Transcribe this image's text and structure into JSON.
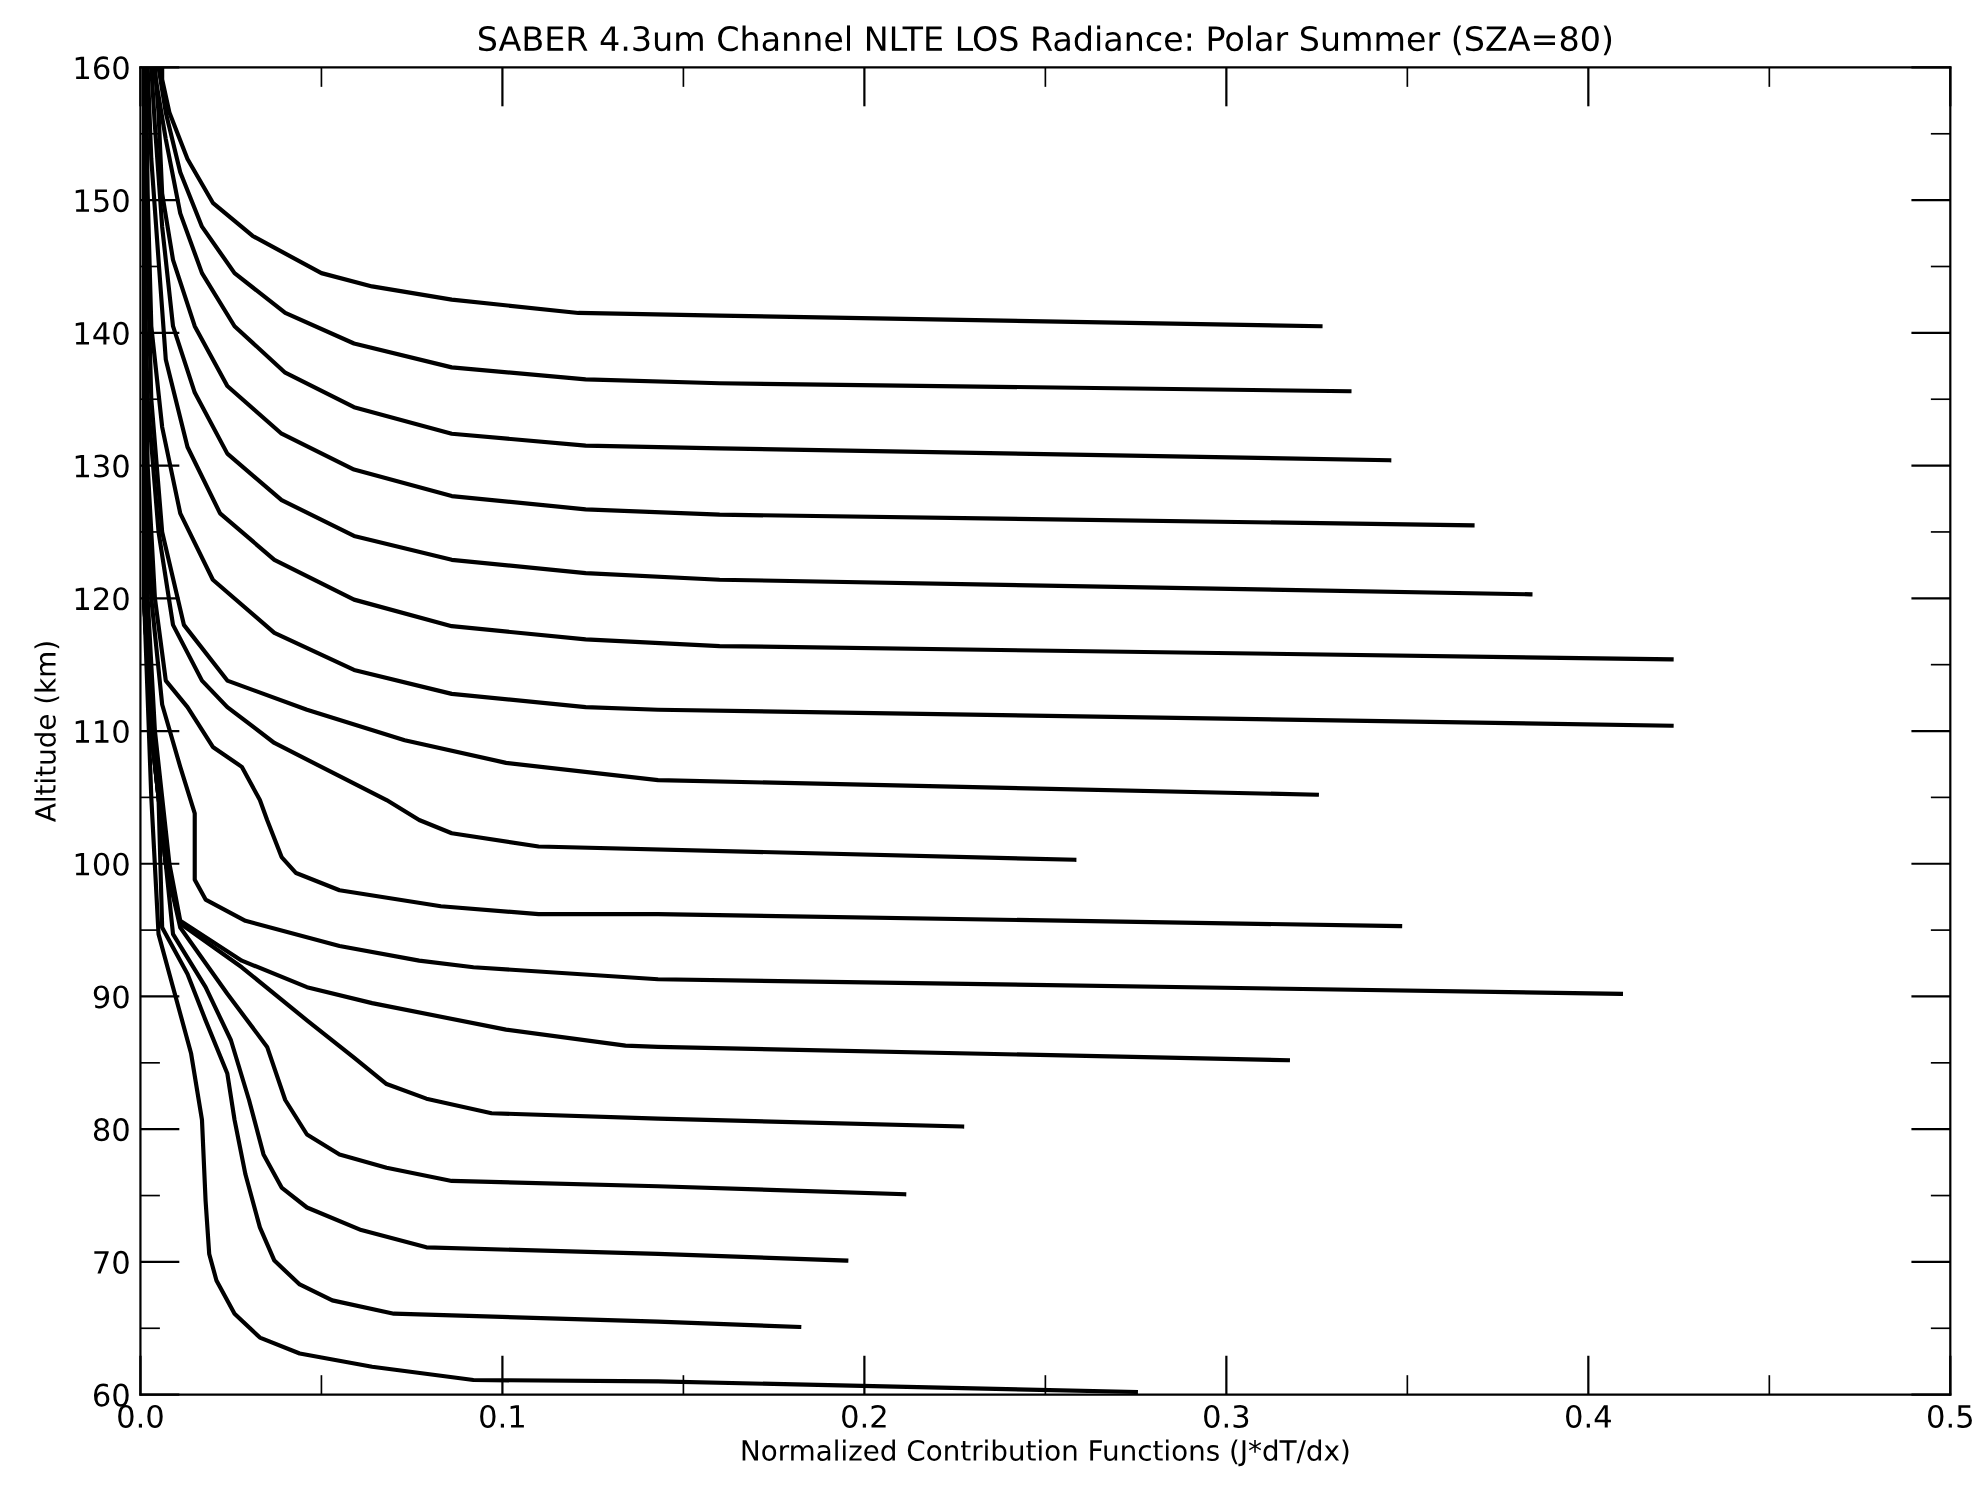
{
  "chart_data": {
    "type": "line",
    "title": "SABER 4.3um Channel NLTE LOS Radiance: Polar Summer (SZA=80)",
    "xlabel": "Normalized Contribution Functions (J*dT/dx)",
    "ylabel": "Altitude (km)",
    "xlim": [
      0,
      0.5
    ],
    "ylim": [
      60,
      160
    ],
    "xticks": [
      {
        "value": 0,
        "label": "0.0"
      },
      {
        "value": 0.1,
        "label": "0.1"
      },
      {
        "value": 0.2,
        "label": "0.2"
      },
      {
        "value": 0.3,
        "label": "0.3"
      },
      {
        "value": 0.4,
        "label": "0.4"
      },
      {
        "value": 0.5,
        "label": "0.5"
      }
    ],
    "yticks": [
      60,
      70,
      80,
      90,
      100,
      110,
      120,
      130,
      140,
      150,
      160
    ],
    "grid": false,
    "legend": false,
    "marker": "none",
    "line_style": "solid",
    "series": [
      {
        "color": "#000000",
        "x": [
          0.275,
          0.143,
          0.092,
          0.064,
          0.044,
          0.033,
          0.026,
          0.021,
          0.019,
          0.018,
          0.017,
          0.014,
          0.009,
          0.005,
          0.003,
          0.001,
          0.001,
          0.001
        ],
        "values": [
          60.2,
          61.0,
          61.1,
          62.1,
          63.1,
          64.3,
          66.1,
          68.6,
          70.6,
          74.6,
          80.7,
          85.7,
          90.7,
          94.7,
          105,
          120,
          140,
          160
        ]
      },
      {
        "color": "#000000",
        "x": [
          0.182,
          0.143,
          0.07,
          0.053,
          0.044,
          0.037,
          0.033,
          0.029,
          0.026,
          0.024,
          0.018,
          0.013,
          0.006,
          0.005,
          0.003,
          0.001,
          0.001,
          0.001
        ],
        "values": [
          65.1,
          65.5,
          66.1,
          67.1,
          68.3,
          70.1,
          72.6,
          76.6,
          80.7,
          84.2,
          88.2,
          91.7,
          95.2,
          105,
          110,
          120,
          140,
          160
        ]
      },
      {
        "color": "#000000",
        "x": [
          0.195,
          0.143,
          0.079,
          0.061,
          0.046,
          0.039,
          0.034,
          0.03,
          0.025,
          0.018,
          0.009,
          0.007,
          0.005,
          0.003,
          0.001,
          0.001,
          0.001
        ],
        "values": [
          70.1,
          70.6,
          71.1,
          72.4,
          74.1,
          75.6,
          78.1,
          82.2,
          86.7,
          90.7,
          94.7,
          100,
          105,
          110,
          120,
          140,
          160
        ]
      },
      {
        "color": "#000000",
        "x": [
          0.211,
          0.143,
          0.086,
          0.068,
          0.055,
          0.046,
          0.04,
          0.035,
          0.024,
          0.011,
          0.007,
          0.005,
          0.003,
          0.001,
          0.001,
          0.001
        ],
        "values": [
          75.1,
          75.7,
          76.1,
          77.1,
          78.1,
          79.6,
          82.2,
          86.2,
          90.2,
          95.2,
          100,
          105,
          110,
          120,
          140,
          160
        ]
      },
      {
        "color": "#000000",
        "x": [
          0.227,
          0.143,
          0.097,
          0.079,
          0.068,
          0.059,
          0.046,
          0.028,
          0.011,
          0.007,
          0.005,
          0.003,
          0.001,
          0.001,
          0.001
        ],
        "values": [
          80.2,
          80.8,
          81.2,
          82.3,
          83.4,
          85.4,
          88.2,
          92.2,
          95.5,
          100,
          105,
          110,
          120,
          140,
          160
        ]
      },
      {
        "color": "#000000",
        "x": [
          0.317,
          0.143,
          0.134,
          0.101,
          0.064,
          0.046,
          0.028,
          0.011,
          0.008,
          0.006,
          0.004,
          0.002,
          0.001,
          0.001
        ],
        "values": [
          85.2,
          86.2,
          86.3,
          87.5,
          89.5,
          90.7,
          92.7,
          95.7,
          100,
          105,
          110,
          120,
          135,
          160
        ]
      },
      {
        "color": "#000000",
        "x": [
          0.409,
          0.143,
          0.092,
          0.077,
          0.055,
          0.029,
          0.018,
          0.015,
          0.015,
          0.011,
          0.006,
          0.003,
          0.001,
          0.001
        ],
        "values": [
          90.2,
          91.3,
          92.2,
          92.7,
          93.8,
          95.7,
          97.3,
          98.8,
          103.8,
          107.3,
          112,
          120,
          135,
          160
        ]
      },
      {
        "color": "#000000",
        "x": [
          0.348,
          0.143,
          0.11,
          0.083,
          0.055,
          0.043,
          0.039,
          0.035,
          0.033,
          0.028,
          0.02,
          0.013,
          0.007,
          0.004,
          0.002,
          0.001,
          0.001
        ],
        "values": [
          95.3,
          96.2,
          96.2,
          96.8,
          98.0,
          99.3,
          100.5,
          103.3,
          104.8,
          107.3,
          108.8,
          111.8,
          113.8,
          120,
          130,
          145,
          160
        ]
      },
      {
        "color": "#000000",
        "x": [
          0.258,
          0.11,
          0.086,
          0.077,
          0.068,
          0.055,
          0.037,
          0.024,
          0.017,
          0.009,
          0.005,
          0.002,
          0.001,
          0.001
        ],
        "values": [
          100.3,
          101.3,
          102.3,
          103.3,
          104.8,
          106.6,
          109.1,
          111.8,
          113.8,
          118,
          125,
          135,
          145,
          160
        ]
      },
      {
        "color": "#000000",
        "x": [
          0.325,
          0.143,
          0.101,
          0.073,
          0.046,
          0.024,
          0.012,
          0.006,
          0.003,
          0.002,
          0.001
        ],
        "values": [
          105.2,
          106.3,
          107.6,
          109.3,
          111.6,
          113.8,
          118,
          125,
          135,
          145,
          160
        ]
      },
      {
        "color": "#000000",
        "x": [
          0.423,
          0.143,
          0.123,
          0.086,
          0.059,
          0.037,
          0.02,
          0.011,
          0.006,
          0.003,
          0.002,
          0.0015
        ],
        "values": [
          110.4,
          111.6,
          111.8,
          112.8,
          114.6,
          117.4,
          121.4,
          126.4,
          132.9,
          140.5,
          150.5,
          160
        ]
      },
      {
        "color": "#000000",
        "x": [
          0.423,
          0.16,
          0.123,
          0.086,
          0.059,
          0.037,
          0.022,
          0.013,
          0.007,
          0.005,
          0.003,
          0.002
        ],
        "values": [
          115.4,
          116.4,
          116.9,
          117.9,
          119.9,
          122.9,
          126.4,
          131.4,
          138.0,
          145.5,
          153.1,
          160
        ]
      },
      {
        "color": "#000000",
        "x": [
          0.384,
          0.16,
          0.123,
          0.086,
          0.059,
          0.039,
          0.024,
          0.015,
          0.009,
          0.006,
          0.004,
          0.003
        ],
        "values": [
          120.3,
          121.4,
          121.9,
          122.9,
          124.7,
          127.4,
          130.9,
          135.5,
          140.5,
          148.0,
          155.6,
          160
        ]
      },
      {
        "color": "#000000",
        "x": [
          0.368,
          0.16,
          0.123,
          0.086,
          0.059,
          0.039,
          0.024,
          0.015,
          0.009,
          0.006,
          0.005,
          0.004
        ],
        "values": [
          125.5,
          126.3,
          126.7,
          127.7,
          129.7,
          132.4,
          136.0,
          140.5,
          145.5,
          150.5,
          156.6,
          160
        ]
      },
      {
        "color": "#000000",
        "x": [
          0.345,
          0.16,
          0.123,
          0.086,
          0.059,
          0.04,
          0.026,
          0.017,
          0.011,
          0.007,
          0.004,
          0.003
        ],
        "values": [
          130.4,
          131.3,
          131.5,
          132.4,
          134.4,
          137.0,
          140.5,
          144.5,
          149.0,
          154.6,
          159.5,
          160
        ]
      },
      {
        "color": "#000000",
        "x": [
          0.334,
          0.16,
          0.123,
          0.086,
          0.059,
          0.04,
          0.026,
          0.017,
          0.011,
          0.007,
          0.005
        ],
        "values": [
          135.6,
          136.2,
          136.5,
          137.4,
          139.2,
          141.5,
          144.5,
          148.0,
          152.1,
          156.6,
          160
        ]
      },
      {
        "color": "#000000",
        "x": [
          0.326,
          0.16,
          0.121,
          0.086,
          0.064,
          0.05,
          0.031,
          0.02,
          0.013,
          0.008,
          0.006,
          0.006
        ],
        "values": [
          140.5,
          141.3,
          141.5,
          142.5,
          143.5,
          144.5,
          147.3,
          149.8,
          153.1,
          156.6,
          159.1,
          160
        ]
      }
    ]
  }
}
